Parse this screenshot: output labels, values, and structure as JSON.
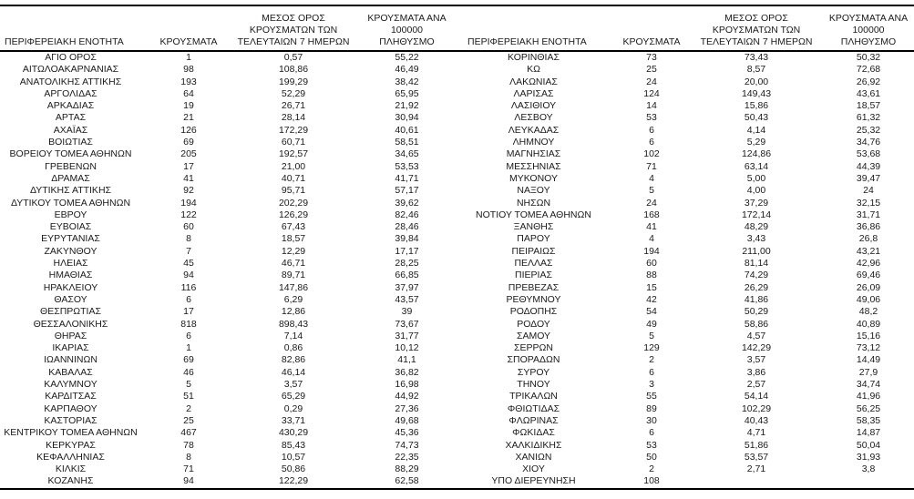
{
  "table": {
    "header": {
      "region": "ΠΕΡΙΦΕΡΕΙΑΚΗ ΕΝΟΤΗΤΑ",
      "cases": "ΚΡΟΥΣΜΑΤΑ",
      "avg7": "ΜΕΣΟΣ ΟΡΟΣ\nΚΡΟΥΣΜΑΤΩΝ ΤΩΝ\nΤΕΛΕΥΤΑΙΩΝ 7 ΗΜΕΡΩΝ",
      "per100k": "ΚΡΟΥΣΜΑΤΑ ΑΝΑ 100000\nΠΛΗΘΥΣΜΟ"
    },
    "colors": {
      "text": "#1a1a1a",
      "rule": "#000000",
      "background": "#ffffff"
    },
    "left_rows": [
      [
        "ΑΓΙΟ ΟΡΟΣ",
        "1",
        "0,57",
        "55,22"
      ],
      [
        "ΑΙΤΩΛΟΑΚΑΡΝΑΝΙΑΣ",
        "98",
        "108,86",
        "46,49"
      ],
      [
        "ΑΝΑΤΟΛΙΚΗΣ ΑΤΤΙΚΗΣ",
        "193",
        "199,29",
        "38,42"
      ],
      [
        "ΑΡΓΟΛΙΔΑΣ",
        "64",
        "52,29",
        "65,95"
      ],
      [
        "ΑΡΚΑΔΙΑΣ",
        "19",
        "26,71",
        "21,92"
      ],
      [
        "ΑΡΤΑΣ",
        "21",
        "28,14",
        "30,94"
      ],
      [
        "ΑΧΑΪΑΣ",
        "126",
        "172,29",
        "40,61"
      ],
      [
        "ΒΟΙΩΤΙΑΣ",
        "69",
        "60,71",
        "58,51"
      ],
      [
        "ΒΟΡΕΙΟΥ ΤΟΜΕΑ ΑΘΗΝΩΝ",
        "205",
        "192,57",
        "34,65"
      ],
      [
        "ΓΡΕΒΕΝΩΝ",
        "17",
        "21,00",
        "53,53"
      ],
      [
        "ΔΡΑΜΑΣ",
        "41",
        "40,71",
        "41,71"
      ],
      [
        "ΔΥΤΙΚΗΣ ΑΤΤΙΚΗΣ",
        "92",
        "95,71",
        "57,17"
      ],
      [
        "ΔΥΤΙΚΟΥ ΤΟΜΕΑ ΑΘΗΝΩΝ",
        "194",
        "202,29",
        "39,62"
      ],
      [
        "ΕΒΡΟΥ",
        "122",
        "126,29",
        "82,46"
      ],
      [
        "ΕΥΒΟΙΑΣ",
        "60",
        "67,43",
        "28,46"
      ],
      [
        "ΕΥΡΥΤΑΝΙΑΣ",
        "8",
        "18,57",
        "39,84"
      ],
      [
        "ΖΑΚΥΝΘΟΥ",
        "7",
        "12,29",
        "17,17"
      ],
      [
        "ΗΛΕΙΑΣ",
        "45",
        "46,71",
        "28,25"
      ],
      [
        "ΗΜΑΘΙΑΣ",
        "94",
        "89,71",
        "66,85"
      ],
      [
        "ΗΡΑΚΛΕΙΟΥ",
        "116",
        "147,86",
        "37,97"
      ],
      [
        "ΘΑΣΟΥ",
        "6",
        "6,29",
        "43,57"
      ],
      [
        "ΘΕΣΠΡΩΤΙΑΣ",
        "17",
        "12,86",
        "39"
      ],
      [
        "ΘΕΣΣΑΛΟΝΙΚΗΣ",
        "818",
        "898,43",
        "73,67"
      ],
      [
        "ΘΗΡΑΣ",
        "6",
        "7,14",
        "31,77"
      ],
      [
        "ΙΚΑΡΙΑΣ",
        "1",
        "0,86",
        "10,12"
      ],
      [
        "ΙΩΑΝΝΙΝΩΝ",
        "69",
        "82,86",
        "41,1"
      ],
      [
        "ΚΑΒΑΛΑΣ",
        "46",
        "46,14",
        "36,82"
      ],
      [
        "ΚΑΛΥΜΝΟΥ",
        "5",
        "3,57",
        "16,98"
      ],
      [
        "ΚΑΡΔΙΤΣΑΣ",
        "51",
        "65,29",
        "44,92"
      ],
      [
        "ΚΑΡΠΑΘΟΥ",
        "2",
        "0,29",
        "27,36"
      ],
      [
        "ΚΑΣΤΟΡΙΑΣ",
        "25",
        "33,71",
        "49,68"
      ],
      [
        "ΚΕΝΤΡΙΚΟΥ ΤΟΜΕΑ ΑΘΗΝΩΝ",
        "467",
        "430,29",
        "45,36"
      ],
      [
        "ΚΕΡΚΥΡΑΣ",
        "78",
        "85,43",
        "74,73"
      ],
      [
        "ΚΕΦΑΛΛΗΝΙΑΣ",
        "8",
        "10,57",
        "22,35"
      ],
      [
        "ΚΙΛΚΙΣ",
        "71",
        "50,86",
        "88,29"
      ],
      [
        "ΚΟΖΑΝΗΣ",
        "94",
        "122,29",
        "62,58"
      ]
    ],
    "right_rows": [
      [
        "ΚΟΡΙΝΘΙΑΣ",
        "73",
        "73,43",
        "50,32"
      ],
      [
        "ΚΩ",
        "25",
        "8,57",
        "72,68"
      ],
      [
        "ΛΑΚΩΝΙΑΣ",
        "24",
        "20,00",
        "26,92"
      ],
      [
        "ΛΑΡΙΣΑΣ",
        "124",
        "149,43",
        "43,61"
      ],
      [
        "ΛΑΣΙΘΙΟΥ",
        "14",
        "15,86",
        "18,57"
      ],
      [
        "ΛΕΣΒΟΥ",
        "53",
        "50,43",
        "61,32"
      ],
      [
        "ΛΕΥΚΑΔΑΣ",
        "6",
        "4,14",
        "25,32"
      ],
      [
        "ΛΗΜΝΟΥ",
        "6",
        "5,29",
        "34,76"
      ],
      [
        "ΜΑΓΝΗΣΙΑΣ",
        "102",
        "124,86",
        "53,68"
      ],
      [
        "ΜΕΣΣΗΝΙΑΣ",
        "71",
        "63,14",
        "44,39"
      ],
      [
        "ΜΥΚΟΝΟΥ",
        "4",
        "5,00",
        "39,47"
      ],
      [
        "ΝΑΞΟΥ",
        "5",
        "4,00",
        "24"
      ],
      [
        "ΝΗΣΩΝ",
        "24",
        "37,29",
        "32,15"
      ],
      [
        "ΝΟΤΙΟΥ ΤΟΜΕΑ ΑΘΗΝΩΝ",
        "168",
        "172,14",
        "31,71"
      ],
      [
        "ΞΑΝΘΗΣ",
        "41",
        "48,29",
        "36,86"
      ],
      [
        "ΠΑΡΟΥ",
        "4",
        "3,43",
        "26,8"
      ],
      [
        "ΠΕΙΡΑΙΩΣ",
        "194",
        "211,00",
        "43,21"
      ],
      [
        "ΠΕΛΛΑΣ",
        "60",
        "81,14",
        "42,96"
      ],
      [
        "ΠΙΕΡΙΑΣ",
        "88",
        "74,29",
        "69,46"
      ],
      [
        "ΠΡΕΒΕΖΑΣ",
        "15",
        "26,29",
        "26,09"
      ],
      [
        "ΡΕΘΥΜΝΟΥ",
        "42",
        "41,86",
        "49,06"
      ],
      [
        "ΡΟΔΟΠΗΣ",
        "54",
        "50,29",
        "48,2"
      ],
      [
        "ΡΟΔΟΥ",
        "49",
        "58,86",
        "40,89"
      ],
      [
        "ΣΑΜΟΥ",
        "5",
        "4,57",
        "15,16"
      ],
      [
        "ΣΕΡΡΩΝ",
        "129",
        "142,29",
        "73,12"
      ],
      [
        "ΣΠΟΡΑΔΩΝ",
        "2",
        "3,57",
        "14,49"
      ],
      [
        "ΣΥΡΟΥ",
        "6",
        "3,86",
        "27,9"
      ],
      [
        "ΤΗΝΟΥ",
        "3",
        "2,57",
        "34,74"
      ],
      [
        "ΤΡΙΚΑΛΩΝ",
        "55",
        "54,14",
        "41,96"
      ],
      [
        "ΦΘΙΩΤΙΔΑΣ",
        "89",
        "102,29",
        "56,25"
      ],
      [
        "ΦΛΩΡΙΝΑΣ",
        "30",
        "40,43",
        "58,35"
      ],
      [
        "ΦΩΚΙΔΑΣ",
        "6",
        "4,71",
        "14,87"
      ],
      [
        "ΧΑΛΚΙΔΙΚΗΣ",
        "53",
        "51,86",
        "50,04"
      ],
      [
        "ΧΑΝΙΩΝ",
        "50",
        "53,57",
        "31,93"
      ],
      [
        "ΧΙΟΥ",
        "2",
        "2,71",
        "3,8"
      ],
      [
        "ΥΠΟ ΔΙΕΡΕΥΝΗΣΗ",
        "108",
        "",
        ""
      ]
    ]
  }
}
